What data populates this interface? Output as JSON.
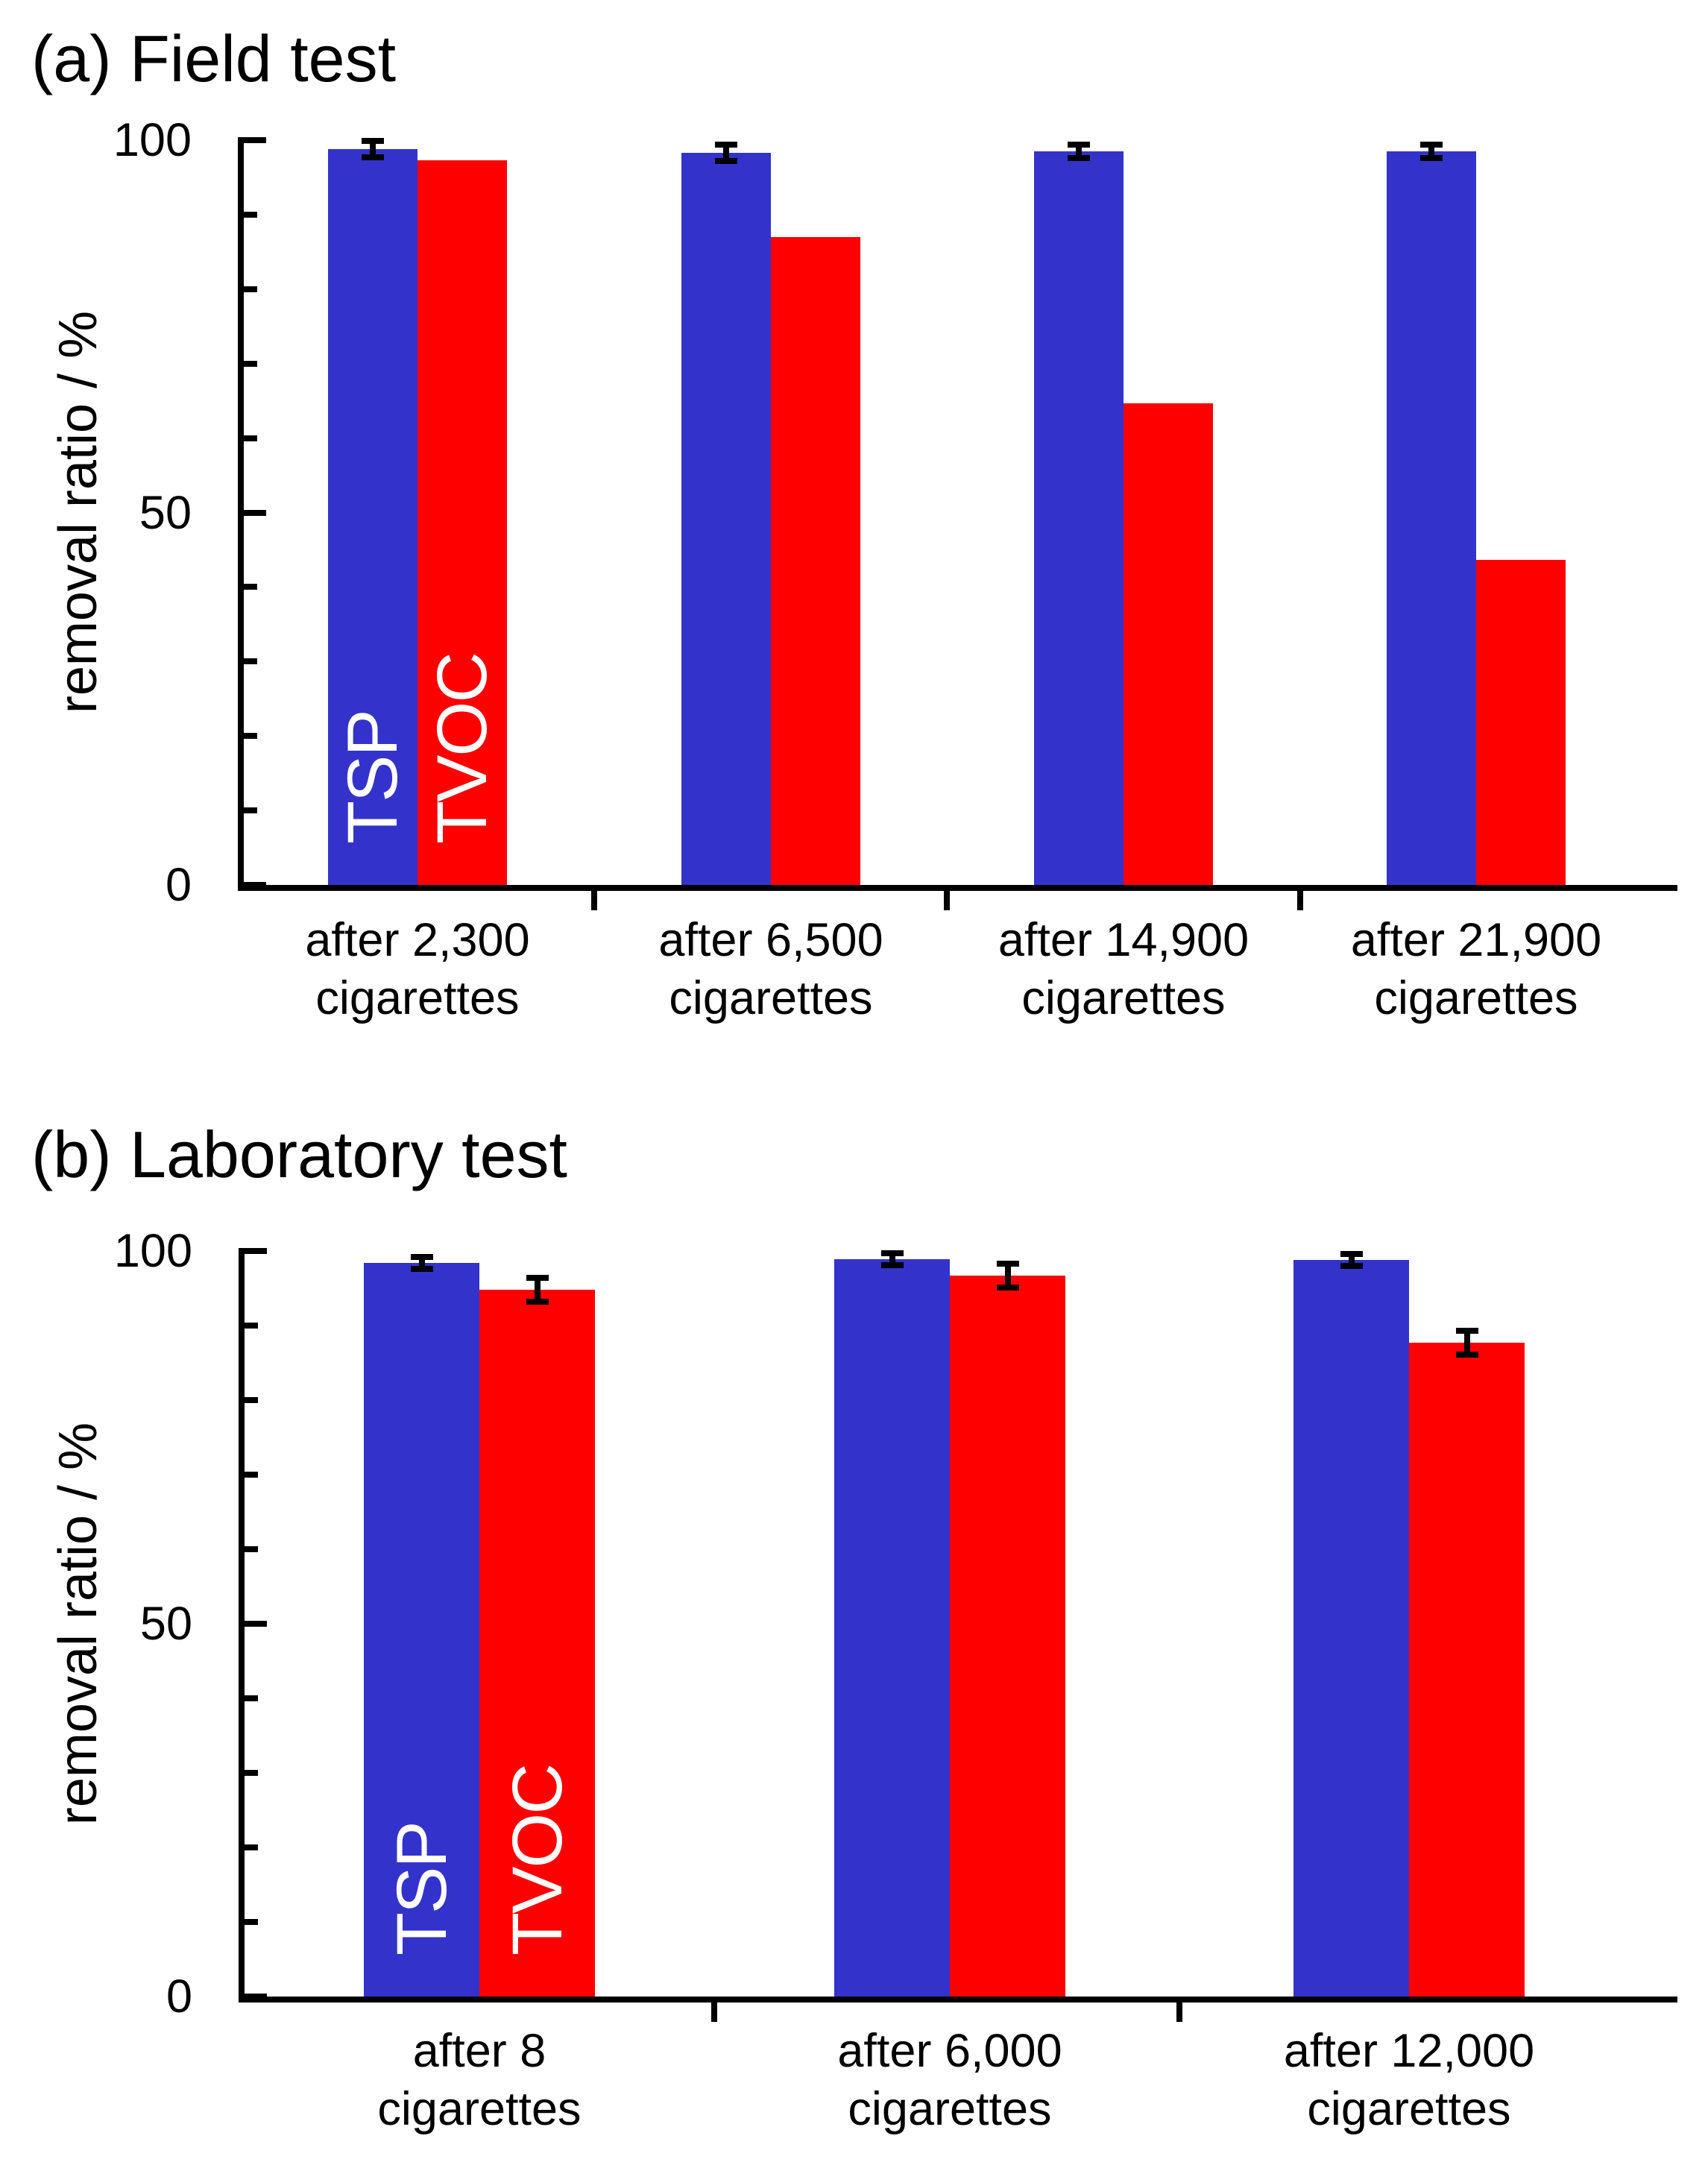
{
  "chart_data": [
    {
      "id": "a",
      "type": "bar",
      "title": "(a) Field test",
      "ylabel": "removal ratio / %",
      "ylim": [
        0,
        100
      ],
      "yticks_major": [
        0,
        50,
        100
      ],
      "ytick_minor_step": 10,
      "grid": false,
      "legend_position": "inside-first-group-bars",
      "categories": [
        [
          "after 2,300",
          "cigarettes"
        ],
        [
          "after 6,500",
          "cigarettes"
        ],
        [
          "after 14,900",
          "cigarettes"
        ],
        [
          "after 21,900",
          "cigarettes"
        ]
      ],
      "series": [
        {
          "name": "TSP",
          "color": "#3333CC",
          "values": [
            98.8,
            98.3,
            98.5,
            98.5
          ],
          "errors": [
            0.7,
            0.7,
            0.5,
            0.5
          ]
        },
        {
          "name": "TVOC",
          "color": "#FF0000",
          "values": [
            97.3,
            87.0,
            64.7,
            43.6
          ],
          "errors": [
            0,
            0,
            0,
            0
          ]
        }
      ]
    },
    {
      "id": "b",
      "type": "bar",
      "title": "(b) Laboratory test",
      "ylabel": "removal ratio / %",
      "ylim": [
        0,
        100
      ],
      "yticks_major": [
        0,
        50,
        100
      ],
      "ytick_minor_step": 10,
      "grid": false,
      "legend_position": "inside-first-group-bars",
      "categories": [
        [
          "after 8",
          "cigarettes"
        ],
        [
          "after 6,000",
          "cigarettes"
        ],
        [
          "after 12,000",
          "cigarettes"
        ]
      ],
      "series": [
        {
          "name": "TSP",
          "color": "#3333CC",
          "values": [
            98.4,
            98.9,
            98.8
          ],
          "errors": [
            0.4,
            0.4,
            0.4
          ]
        },
        {
          "name": "TVOC",
          "color": "#FF0000",
          "values": [
            94.8,
            96.7,
            87.7
          ],
          "errors": [
            1.2,
            1.2,
            1.2
          ]
        }
      ]
    }
  ]
}
